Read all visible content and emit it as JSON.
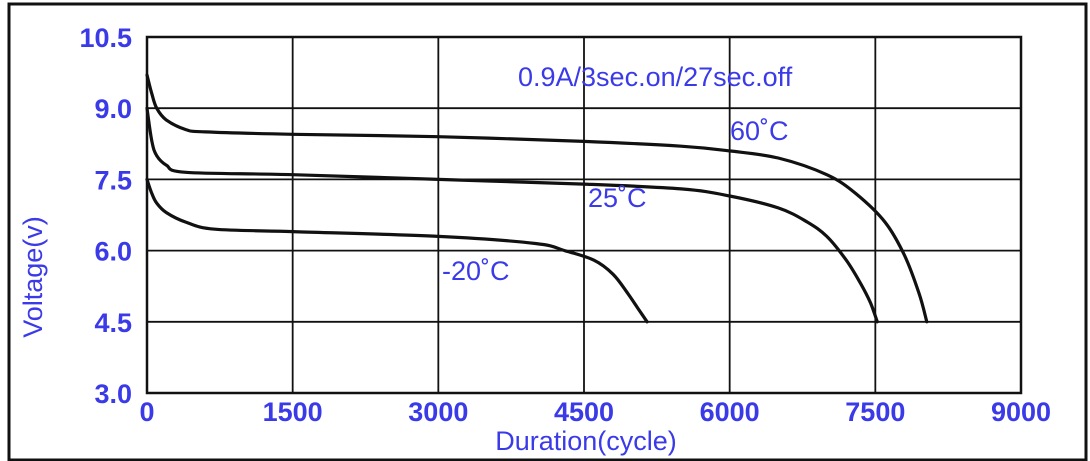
{
  "chart_data": {
    "type": "line",
    "title": "",
    "xlabel": "Duration(cycle)",
    "ylabel": "Voltage(v)",
    "xlim": [
      0,
      9000
    ],
    "ylim": [
      3.0,
      10.5
    ],
    "x_ticks": [
      0,
      1500,
      3000,
      4500,
      6000,
      7500,
      9000
    ],
    "y_ticks": [
      3.0,
      4.5,
      6.0,
      7.5,
      9.0,
      10.5
    ],
    "x_tick_labels": [
      "0",
      "1500",
      "3000",
      "4500",
      "6000",
      "7500",
      "9000"
    ],
    "y_tick_labels": [
      "3.0",
      "4.5",
      "6.0",
      "7.5",
      "9.0",
      "10.5"
    ],
    "grid": true,
    "legend": "none",
    "annotation": "0.9A/3sec.on/27sec.off",
    "line_color": "#111111",
    "text_color": "#3a3ae8",
    "series": [
      {
        "name": "60˚C",
        "x": [
          0,
          50,
          100,
          200,
          400,
          600,
          1500,
          3000,
          4500,
          5500,
          6000,
          6500,
          7000,
          7300,
          7600,
          7800,
          7950,
          8030
        ],
        "y": [
          9.7,
          9.3,
          9.0,
          8.75,
          8.55,
          8.5,
          8.45,
          8.4,
          8.3,
          8.2,
          8.1,
          7.95,
          7.6,
          7.2,
          6.6,
          5.9,
          5.1,
          4.5
        ]
      },
      {
        "name": "25˚C",
        "x": [
          0,
          50,
          100,
          200,
          400,
          1500,
          3000,
          4500,
          5500,
          6000,
          6500,
          6800,
          7000,
          7200,
          7350,
          7450,
          7520
        ],
        "y": [
          9.0,
          8.3,
          8.0,
          7.8,
          7.65,
          7.6,
          7.5,
          7.4,
          7.3,
          7.15,
          6.9,
          6.6,
          6.3,
          5.8,
          5.3,
          4.9,
          4.5
        ]
      },
      {
        "name": "-20˚C",
        "x": [
          0,
          50,
          100,
          200,
          400,
          700,
          1500,
          3000,
          4000,
          4300,
          4600,
          4800,
          4950,
          5050,
          5150
        ],
        "y": [
          7.5,
          7.2,
          7.0,
          6.8,
          6.6,
          6.45,
          6.4,
          6.3,
          6.15,
          6.0,
          5.8,
          5.5,
          5.1,
          4.8,
          4.5
        ]
      }
    ]
  }
}
